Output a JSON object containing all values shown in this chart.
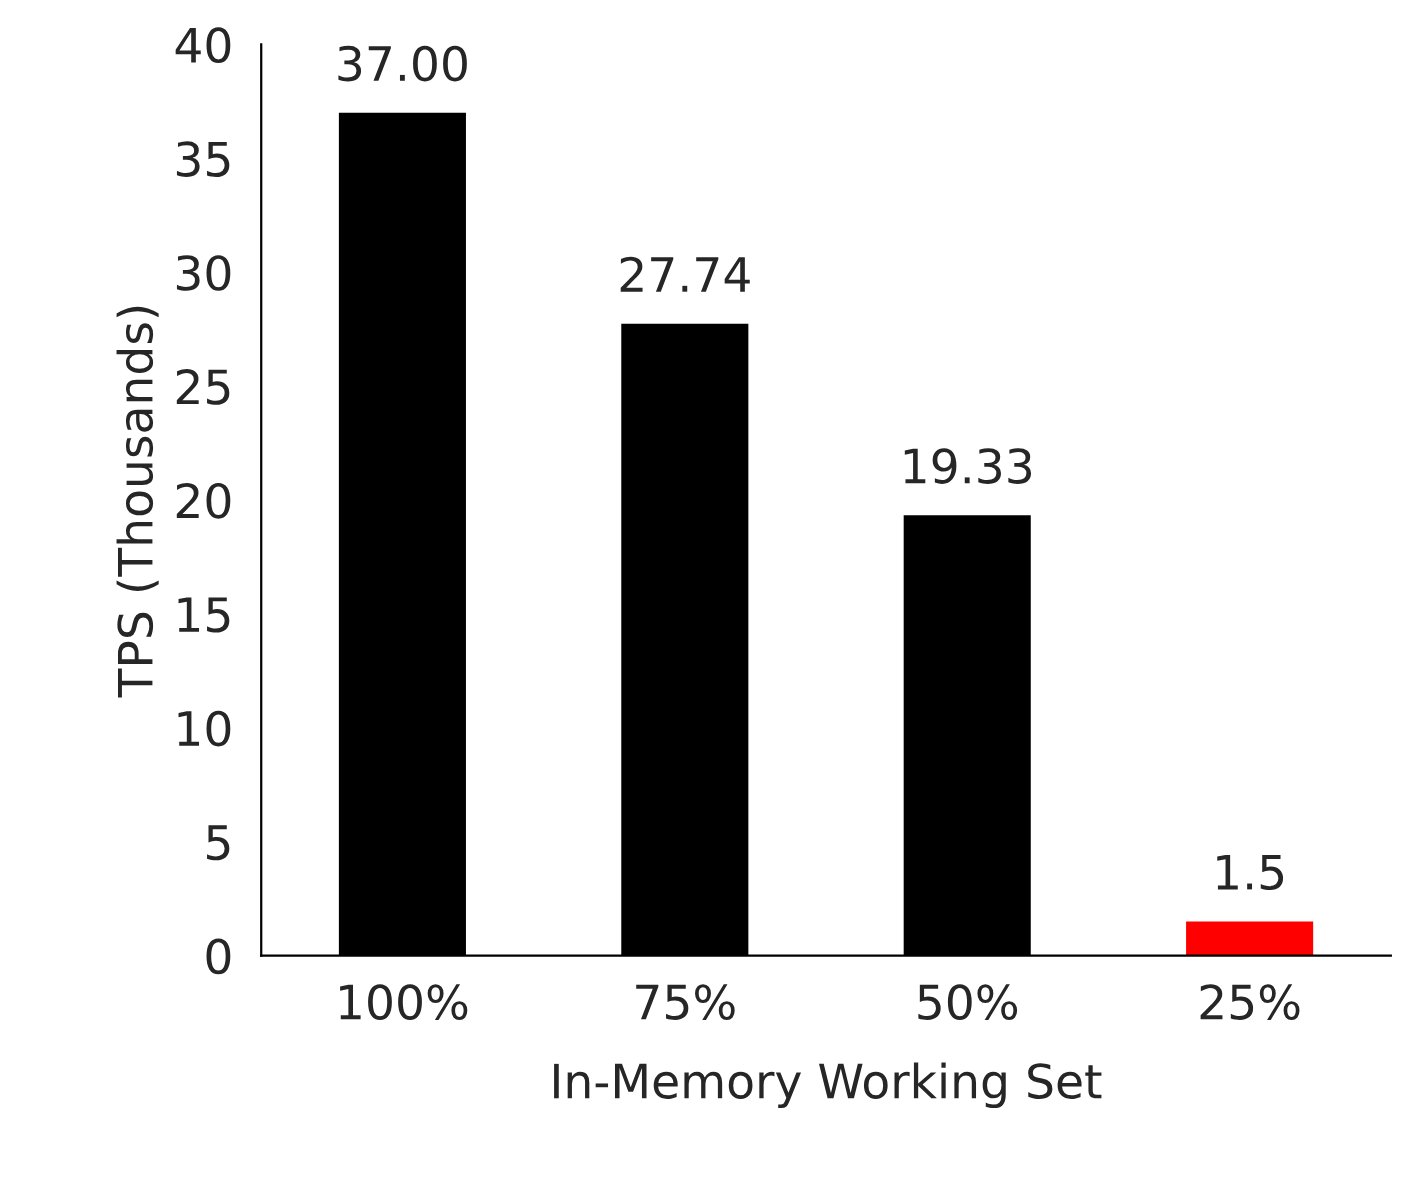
{
  "chart_data": {
    "type": "bar",
    "xlabel": "In-Memory Working Set",
    "ylabel": "TPS (Thousands)",
    "categories": [
      "100%",
      "75%",
      "50%",
      "25%"
    ],
    "values": [
      37,
      27.74,
      19.33,
      1.5
    ],
    "colors": [
      "#000000",
      "#000000",
      "#000000",
      "#ff0000"
    ],
    "value_labels": [
      "37.00",
      "27.74",
      "19.33",
      "1.5"
    ],
    "ylim": [
      0,
      40
    ],
    "yticks": [
      0,
      5,
      10,
      15,
      20,
      25,
      30,
      35,
      40
    ],
    "grid": false,
    "legend": false
  }
}
